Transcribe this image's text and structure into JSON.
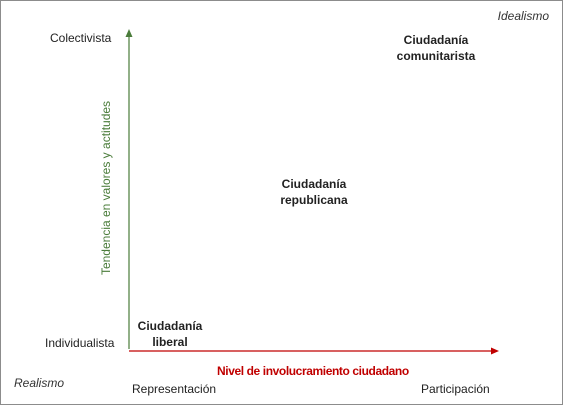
{
  "corners": {
    "top_right": "Idealismo",
    "bottom_left": "Realismo"
  },
  "y_axis": {
    "label": "Tendencia en valores y actitudes",
    "top": "Colectivista",
    "bottom": "Individualista",
    "color": "#4a7c3a"
  },
  "x_axis": {
    "label": "Nivel de involucramiento ciudadano",
    "left": "Representación",
    "right": "Participación",
    "color": "#c00000"
  },
  "points": {
    "liberal": {
      "line1": "Ciudadanía",
      "line2": "liberal"
    },
    "republicana": {
      "line1": "Ciudadanía",
      "line2": "republicana"
    },
    "comunitarista": {
      "line1": "Ciudadanía",
      "line2": "comunitarista"
    }
  }
}
